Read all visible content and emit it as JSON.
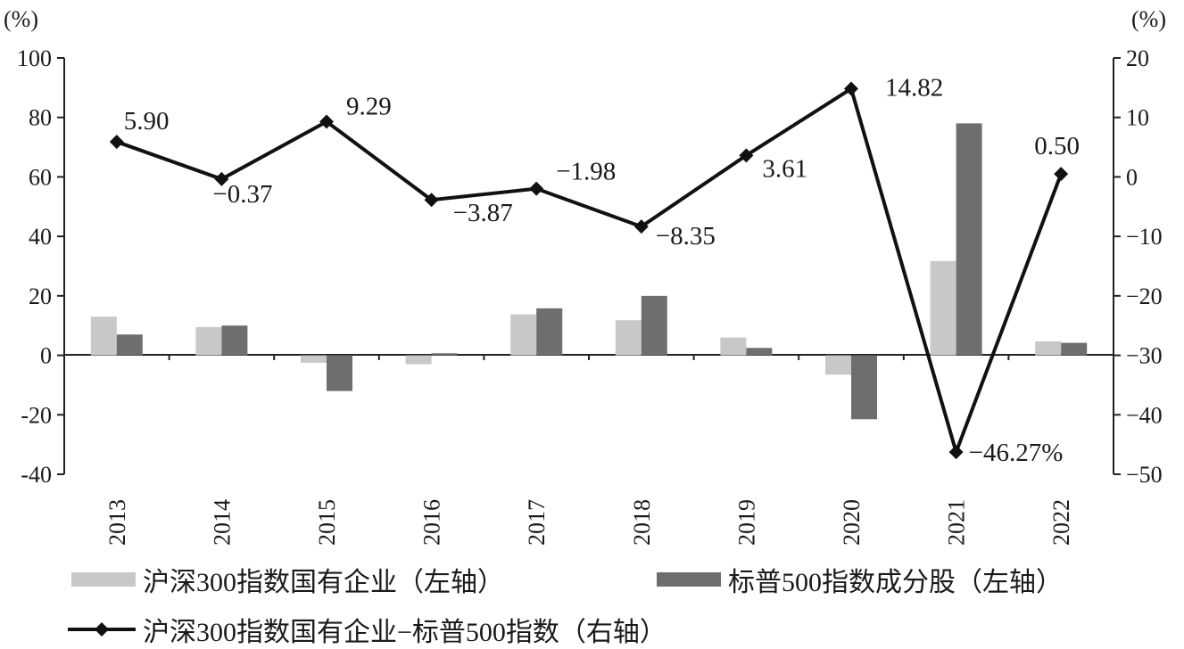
{
  "chart_data": {
    "type": "bar+line",
    "categories": [
      "2013",
      "2014",
      "2015",
      "2016",
      "2017",
      "2018",
      "2019",
      "2020",
      "2021",
      "2022"
    ],
    "left_axis": {
      "unit_label": "(%)",
      "ylim": [
        -40,
        100
      ],
      "ticks": [
        100,
        80,
        60,
        40,
        20,
        0,
        -20,
        -40
      ]
    },
    "right_axis": {
      "unit_label": "(%)",
      "ylim": [
        -50,
        20
      ],
      "ticks": [
        20,
        10,
        0,
        -10,
        -20,
        -30,
        -40,
        -50
      ]
    },
    "series": [
      {
        "name": "沪深300指数国有企业（左轴）",
        "kind": "bar",
        "axis": "left",
        "color": "#c8c8c8",
        "values": [
          13.0,
          9.5,
          -2.5,
          -3.0,
          13.8,
          11.8,
          6.0,
          -6.5,
          31.7,
          4.7
        ]
      },
      {
        "name": "标普500指数成分股（左轴）",
        "kind": "bar",
        "axis": "left",
        "color": "#6e6e6e",
        "values": [
          7.0,
          10.0,
          -12.0,
          0.7,
          15.8,
          20.0,
          2.5,
          -21.5,
          78.0,
          4.2
        ]
      },
      {
        "name": "沪深300指数国有企业−标普500指数（右轴）",
        "kind": "line",
        "axis": "right",
        "color": "#111111",
        "values": [
          5.9,
          -0.37,
          9.29,
          -3.87,
          -1.98,
          -8.35,
          3.61,
          14.82,
          -46.27,
          0.5
        ],
        "data_labels": [
          "5.90",
          "−0.37",
          "9.29",
          "−3.87",
          "−1.98",
          "−8.35",
          "3.61",
          "14.82",
          "−46.27%",
          "0.50"
        ]
      }
    ]
  },
  "legend": {
    "item1": "沪深300指数国有企业（左轴）",
    "item2": "标普500指数成分股（左轴）",
    "item3": "沪深300指数国有企业−标普500指数（右轴）"
  }
}
